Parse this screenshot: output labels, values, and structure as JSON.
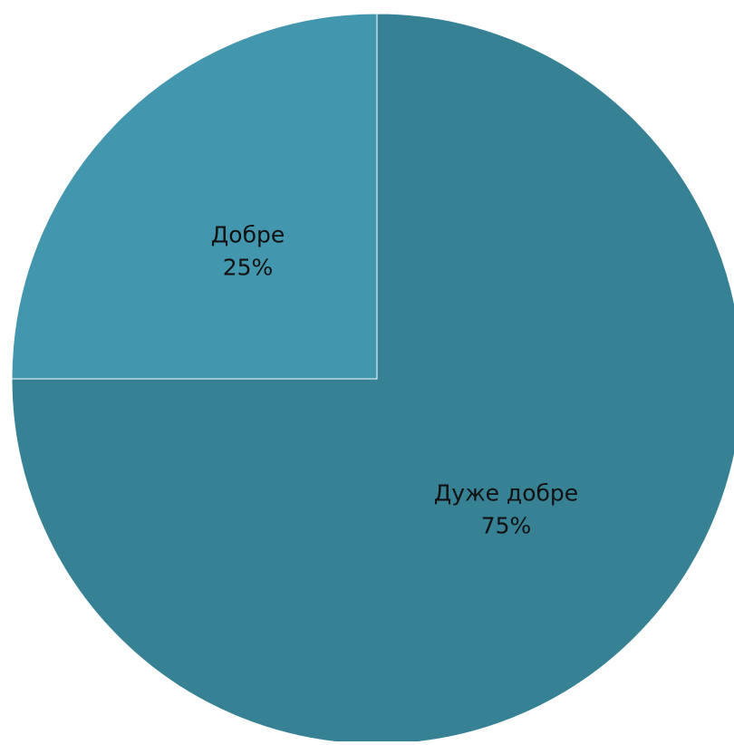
{
  "chart_data": {
    "type": "pie",
    "title": "",
    "start_angle_deg": 0,
    "direction": "clockwise",
    "legend": "none",
    "slices": [
      {
        "label": "Дуже добре",
        "percent_label": "75%",
        "value": 75,
        "color": "#378195"
      },
      {
        "label": "Добре",
        "percent_label": "25%",
        "value": 25,
        "color": "#4297AE"
      }
    ]
  }
}
